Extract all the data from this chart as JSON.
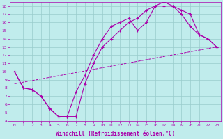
{
  "xlabel": "Windchill (Refroidissement éolien,°C)",
  "xlim": [
    -0.5,
    23.5
  ],
  "ylim": [
    4,
    18.5
  ],
  "bg_color": "#c0ecec",
  "line_color": "#aa00aa",
  "grid_color": "#99cccc",
  "line1_x": [
    0,
    1,
    2,
    3,
    4,
    5,
    6,
    7,
    8,
    9,
    10,
    11,
    12,
    13,
    14,
    15,
    16,
    17,
    18,
    19,
    20,
    21,
    22,
    23
  ],
  "line1_y": [
    10,
    8,
    7.8,
    7,
    5.5,
    4.5,
    4.5,
    7.5,
    9.5,
    12,
    14,
    15.5,
    16,
    16.5,
    15,
    16,
    18,
    18.5,
    18,
    17.5,
    17,
    14.5,
    14,
    13
  ],
  "line2_x": [
    0,
    1,
    2,
    3,
    4,
    5,
    6,
    7,
    8,
    9,
    10,
    11,
    12,
    13,
    14,
    15,
    16,
    17,
    18,
    19,
    20,
    21,
    22,
    23
  ],
  "line2_y": [
    10,
    8,
    7.8,
    7,
    5.5,
    4.5,
    4.5,
    4.5,
    8.5,
    11,
    13,
    14,
    15,
    16,
    16.5,
    17.5,
    18,
    18,
    18,
    17,
    15.5,
    14.5,
    14,
    13
  ],
  "line3_x": [
    0,
    23
  ],
  "line3_y": [
    8.5,
    13
  ],
  "font_size": 5.5,
  "tick_font_size": 4.5
}
